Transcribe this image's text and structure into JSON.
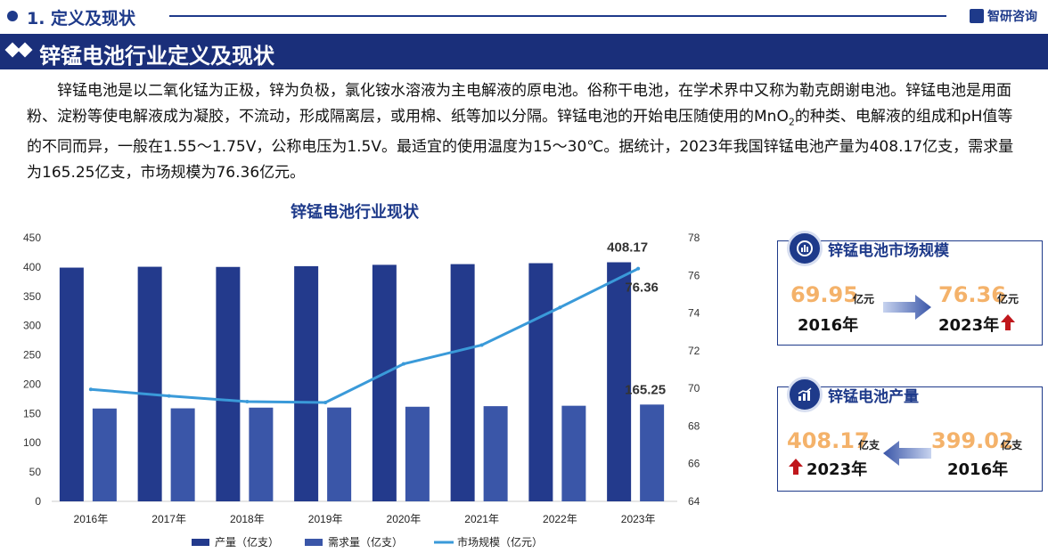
{
  "header": {
    "section": "1. 定义及现状",
    "brand": "智研咨询"
  },
  "banner": {
    "title": "锌锰电池行业定义及现状"
  },
  "intro": {
    "part1": "锌锰电池是以二氧化锰为正极，锌为负极，氯化铵水溶液为主电解液的原电池。俗称干电池，在学术界中又称为勒克朗谢电池。锌锰电池是用面粉、淀粉等使电解液成为凝胶，不流动，形成隔离层，或用棉、纸等加以分隔。锌锰电池的开始电压随使用的MnO",
    "sub": "2",
    "part2": "的种类、电解液的组成和pH值等的不同而异，一般在1.55～1.75V，公称电压为1.5V。最适宜的使用温度为15～30℃。据统计，2023年我国锌锰电池产量为408.17亿支，需求量为165.25亿支，市场规模为76.36亿元。"
  },
  "colors": {
    "primary": "#1e3a8a",
    "production_bar": "#233a8c",
    "demand_bar": "#3a56a8",
    "market_line": "#3a9ad9",
    "highlight": "#f4b26a",
    "up_arrow": "#c0171c"
  },
  "chart_data": {
    "type": "bar",
    "title": "锌锰电池行业现状",
    "categories": [
      "2016年",
      "2017年",
      "2018年",
      "2019年",
      "2020年",
      "2021年",
      "2022年",
      "2023年"
    ],
    "series": [
      {
        "name": "产量（亿支）",
        "type": "bar",
        "axis": "left",
        "values": [
          399.02,
          400.5,
          400.2,
          401.5,
          403.8,
          405.0,
          406.6,
          408.17
        ]
      },
      {
        "name": "需求量（亿支）",
        "type": "bar",
        "axis": "left",
        "values": [
          158.5,
          158.8,
          160.0,
          160.2,
          161.5,
          162.5,
          163.2,
          165.25
        ]
      },
      {
        "name": "市场规模（亿元）",
        "type": "line",
        "axis": "right",
        "values": [
          69.95,
          69.6,
          69.3,
          69.25,
          71.3,
          72.3,
          74.3,
          76.36
        ]
      }
    ],
    "ylim_left": [
      0,
      450
    ],
    "yticks_left": [
      0,
      50,
      100,
      150,
      200,
      250,
      300,
      350,
      400,
      450
    ],
    "ylim_right": [
      64,
      78
    ],
    "yticks_right": [
      64,
      66,
      68,
      70,
      72,
      74,
      76,
      78
    ],
    "data_labels": [
      {
        "series": 0,
        "index": 7,
        "text": "408.17"
      },
      {
        "series": 2,
        "index": 7,
        "text": "76.36"
      },
      {
        "series": 1,
        "index": 7,
        "text": "165.25"
      }
    ],
    "legend_position": "bottom",
    "grid": false
  },
  "cards": {
    "market": {
      "title": "锌锰电池市场规模",
      "from_value": "69.95",
      "from_unit": "亿元",
      "from_year": "2016年",
      "to_value": "76.36",
      "to_unit": "亿元",
      "to_year": "2023年",
      "icon": "bar-chart-icon"
    },
    "production": {
      "title": "锌锰电池产量",
      "latest_value": "408.17",
      "latest_unit": "亿支",
      "latest_year": "2023年",
      "base_value": "399.02",
      "base_unit": "亿支",
      "base_year": "2016年",
      "icon": "trend-chart-icon"
    }
  }
}
